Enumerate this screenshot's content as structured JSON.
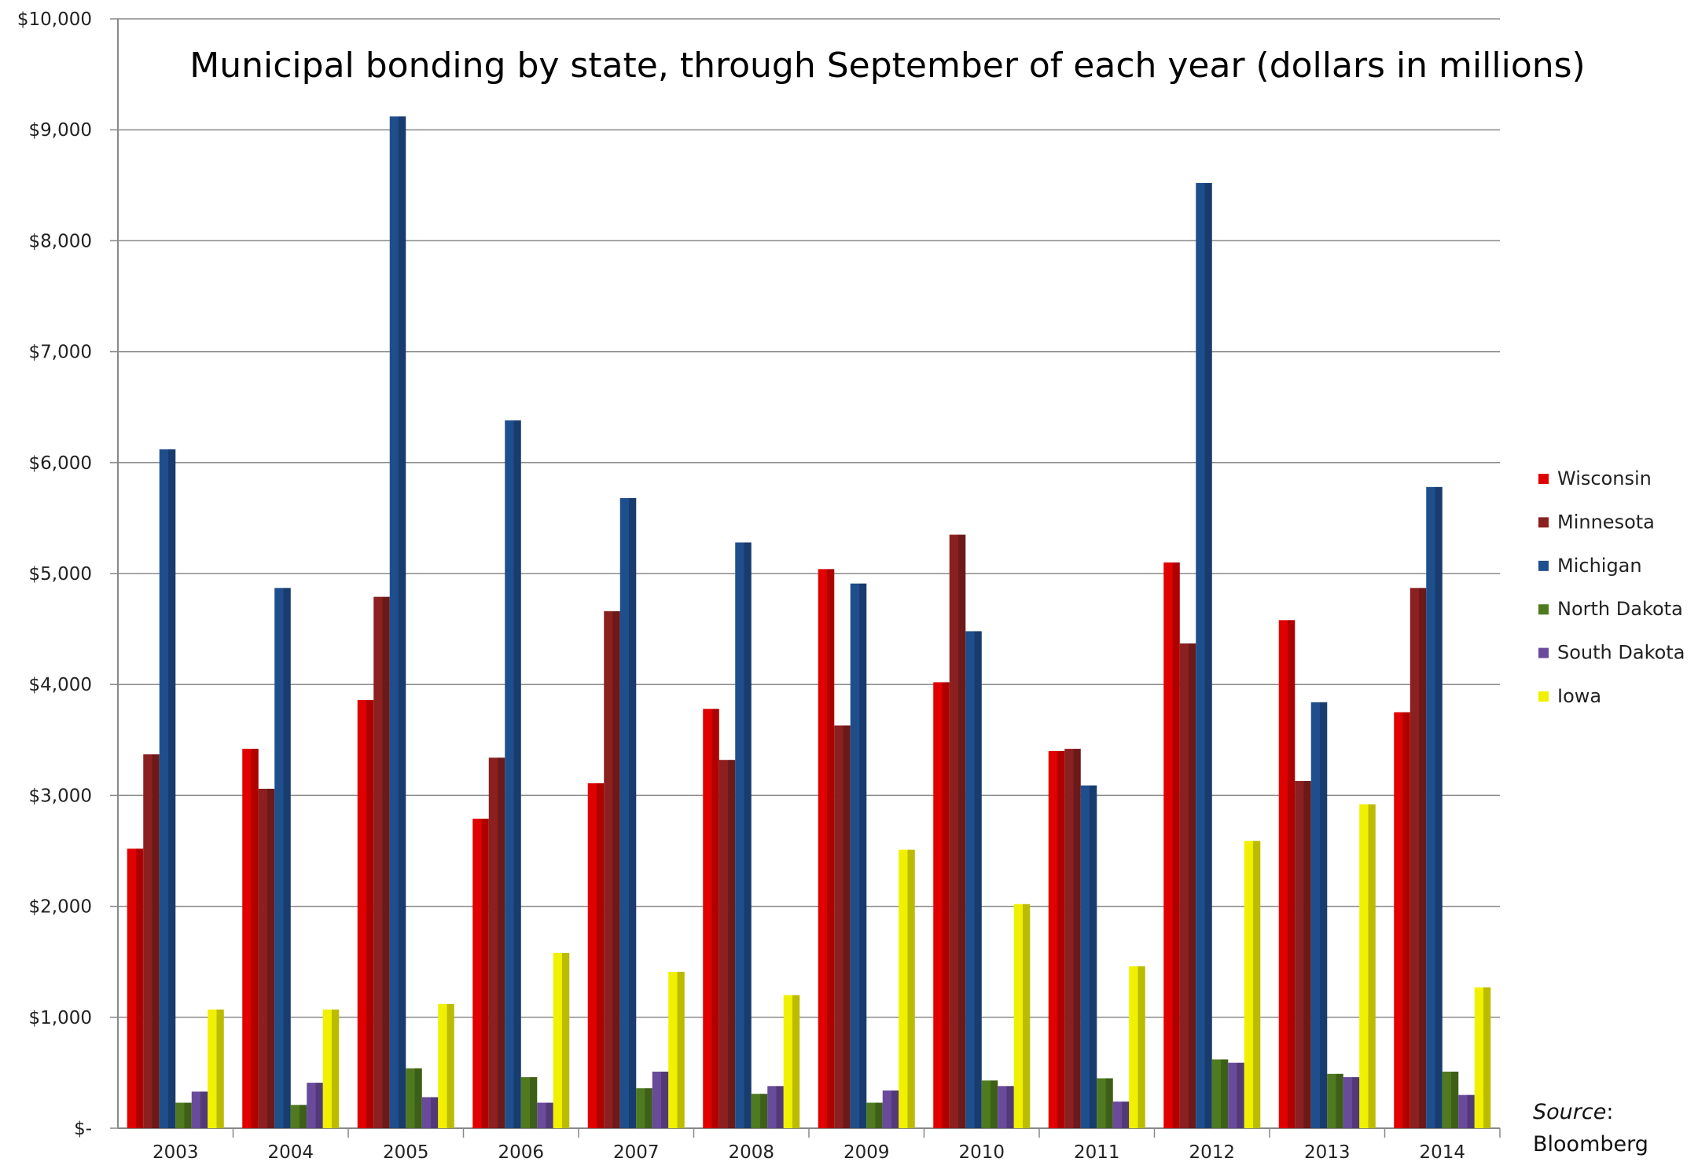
{
  "chart_data": {
    "type": "bar",
    "title": "Municipal bonding by state, through September of each year (dollars in millions)",
    "xlabel": "",
    "ylabel": "",
    "ylim": [
      0,
      10000
    ],
    "yticks": [
      0,
      1000,
      2000,
      3000,
      4000,
      5000,
      6000,
      7000,
      8000,
      9000,
      10000
    ],
    "ytick_labels": [
      "$-",
      "$1,000",
      "$2,000",
      "$3,000",
      "$4,000",
      "$5,000",
      "$6,000",
      "$7,000",
      "$8,000",
      "$9,000",
      "$10,000"
    ],
    "grid": true,
    "legend_position": "right",
    "categories": [
      "2003",
      "2004",
      "2005",
      "2006",
      "2007",
      "2008",
      "2009",
      "2010",
      "2011",
      "2012",
      "2013",
      "2014"
    ],
    "series": [
      {
        "name": "Wisconsin",
        "color": "#e00000",
        "values": [
          2520,
          3420,
          3860,
          2790,
          3110,
          3780,
          5040,
          4020,
          3400,
          5100,
          4580,
          3750
        ]
      },
      {
        "name": "Minnesota",
        "color": "#8b2020",
        "values": [
          3370,
          3060,
          4790,
          3340,
          4660,
          3320,
          3630,
          5350,
          3420,
          4370,
          3130,
          4870
        ]
      },
      {
        "name": "Michigan",
        "color": "#1f4e8c",
        "values": [
          6120,
          4870,
          9120,
          6380,
          5680,
          5280,
          4910,
          4480,
          3090,
          8520,
          3840,
          5780
        ]
      },
      {
        "name": "North Dakota",
        "color": "#4f7a1f",
        "values": [
          230,
          210,
          540,
          460,
          360,
          310,
          230,
          430,
          450,
          620,
          490,
          510
        ]
      },
      {
        "name": "South Dakota",
        "color": "#6a4a9a",
        "values": [
          330,
          410,
          280,
          230,
          510,
          380,
          340,
          380,
          240,
          590,
          460,
          300
        ]
      },
      {
        "name": "Iowa",
        "color": "#f0f000",
        "values": [
          1070,
          1070,
          1120,
          1580,
          1410,
          1200,
          2510,
          2020,
          1460,
          2590,
          2920,
          1270
        ]
      }
    ],
    "annotation": {
      "source_label": "Source",
      "source_suffix": ":",
      "source_name": "Bloomberg"
    }
  }
}
